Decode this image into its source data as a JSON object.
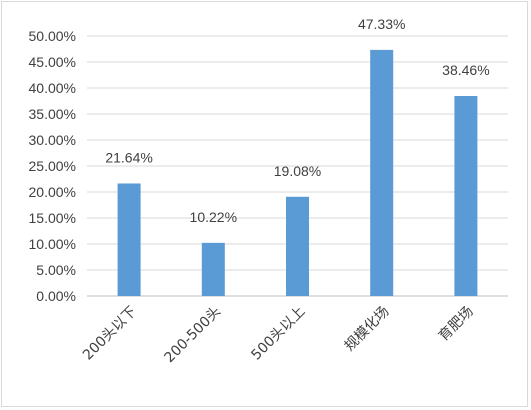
{
  "chart_data": {
    "type": "bar",
    "title": "",
    "xlabel": "",
    "ylabel": "",
    "categories": [
      "200头以下",
      "200-500头",
      "500头以上",
      "规模化场",
      "育肥场"
    ],
    "values": [
      21.64,
      10.22,
      19.08,
      47.33,
      38.46
    ],
    "data_labels": [
      "21.64%",
      "10.22%",
      "19.08%",
      "47.33%",
      "38.46%"
    ],
    "ylim": [
      0,
      50
    ],
    "y_ticks": [
      0,
      5,
      10,
      15,
      20,
      25,
      30,
      35,
      40,
      45,
      50
    ],
    "y_tick_labels": [
      "0.00%",
      "5.00%",
      "10.00%",
      "15.00%",
      "20.00%",
      "25.00%",
      "30.00%",
      "35.00%",
      "40.00%",
      "45.00%",
      "50.00%"
    ],
    "grid": true,
    "legend": "none",
    "bar_color": "#5b9bd5"
  }
}
